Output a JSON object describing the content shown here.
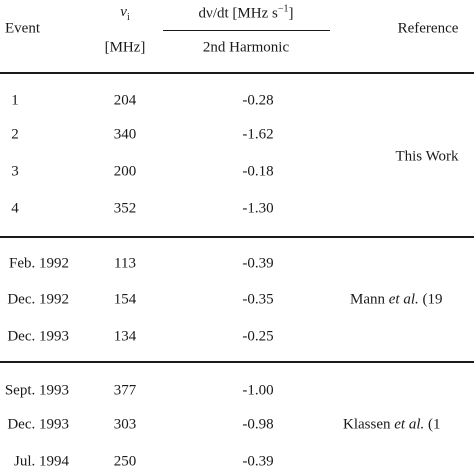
{
  "header": {
    "event": "Event",
    "nu_symbol": "ν",
    "nu_sub": "i",
    "nu_unit": "[MHz]",
    "drift_text": "dν/dt [MHz s",
    "drift_exp": "−1",
    "drift_close": "]",
    "drift_sub": "2nd Harmonic",
    "reference": "Reference"
  },
  "groups": [
    {
      "reference": [
        "This Work"
      ],
      "rows": [
        [
          "1",
          "204",
          "-0.28"
        ],
        [
          "2",
          "340",
          "-1.62"
        ],
        [
          "3",
          "200",
          "-0.18"
        ],
        [
          "4",
          "352",
          "-1.30"
        ]
      ]
    },
    {
      "reference": [
        "Mann",
        "et al.",
        "(19"
      ],
      "rows": [
        [
          "Feb. 1992",
          "113",
          "-0.39"
        ],
        [
          "Dec. 1992",
          "154",
          "-0.35"
        ],
        [
          "Dec. 1993",
          "134",
          "-0.25"
        ]
      ]
    },
    {
      "reference": [
        "Klassen",
        "et al.",
        "(1"
      ],
      "rows": [
        [
          "Sept. 1993",
          "377",
          "-1.00"
        ],
        [
          "Dec. 1993",
          "303",
          "-0.98"
        ],
        [
          "Jul. 1994",
          "250",
          "-0.39"
        ]
      ]
    }
  ]
}
